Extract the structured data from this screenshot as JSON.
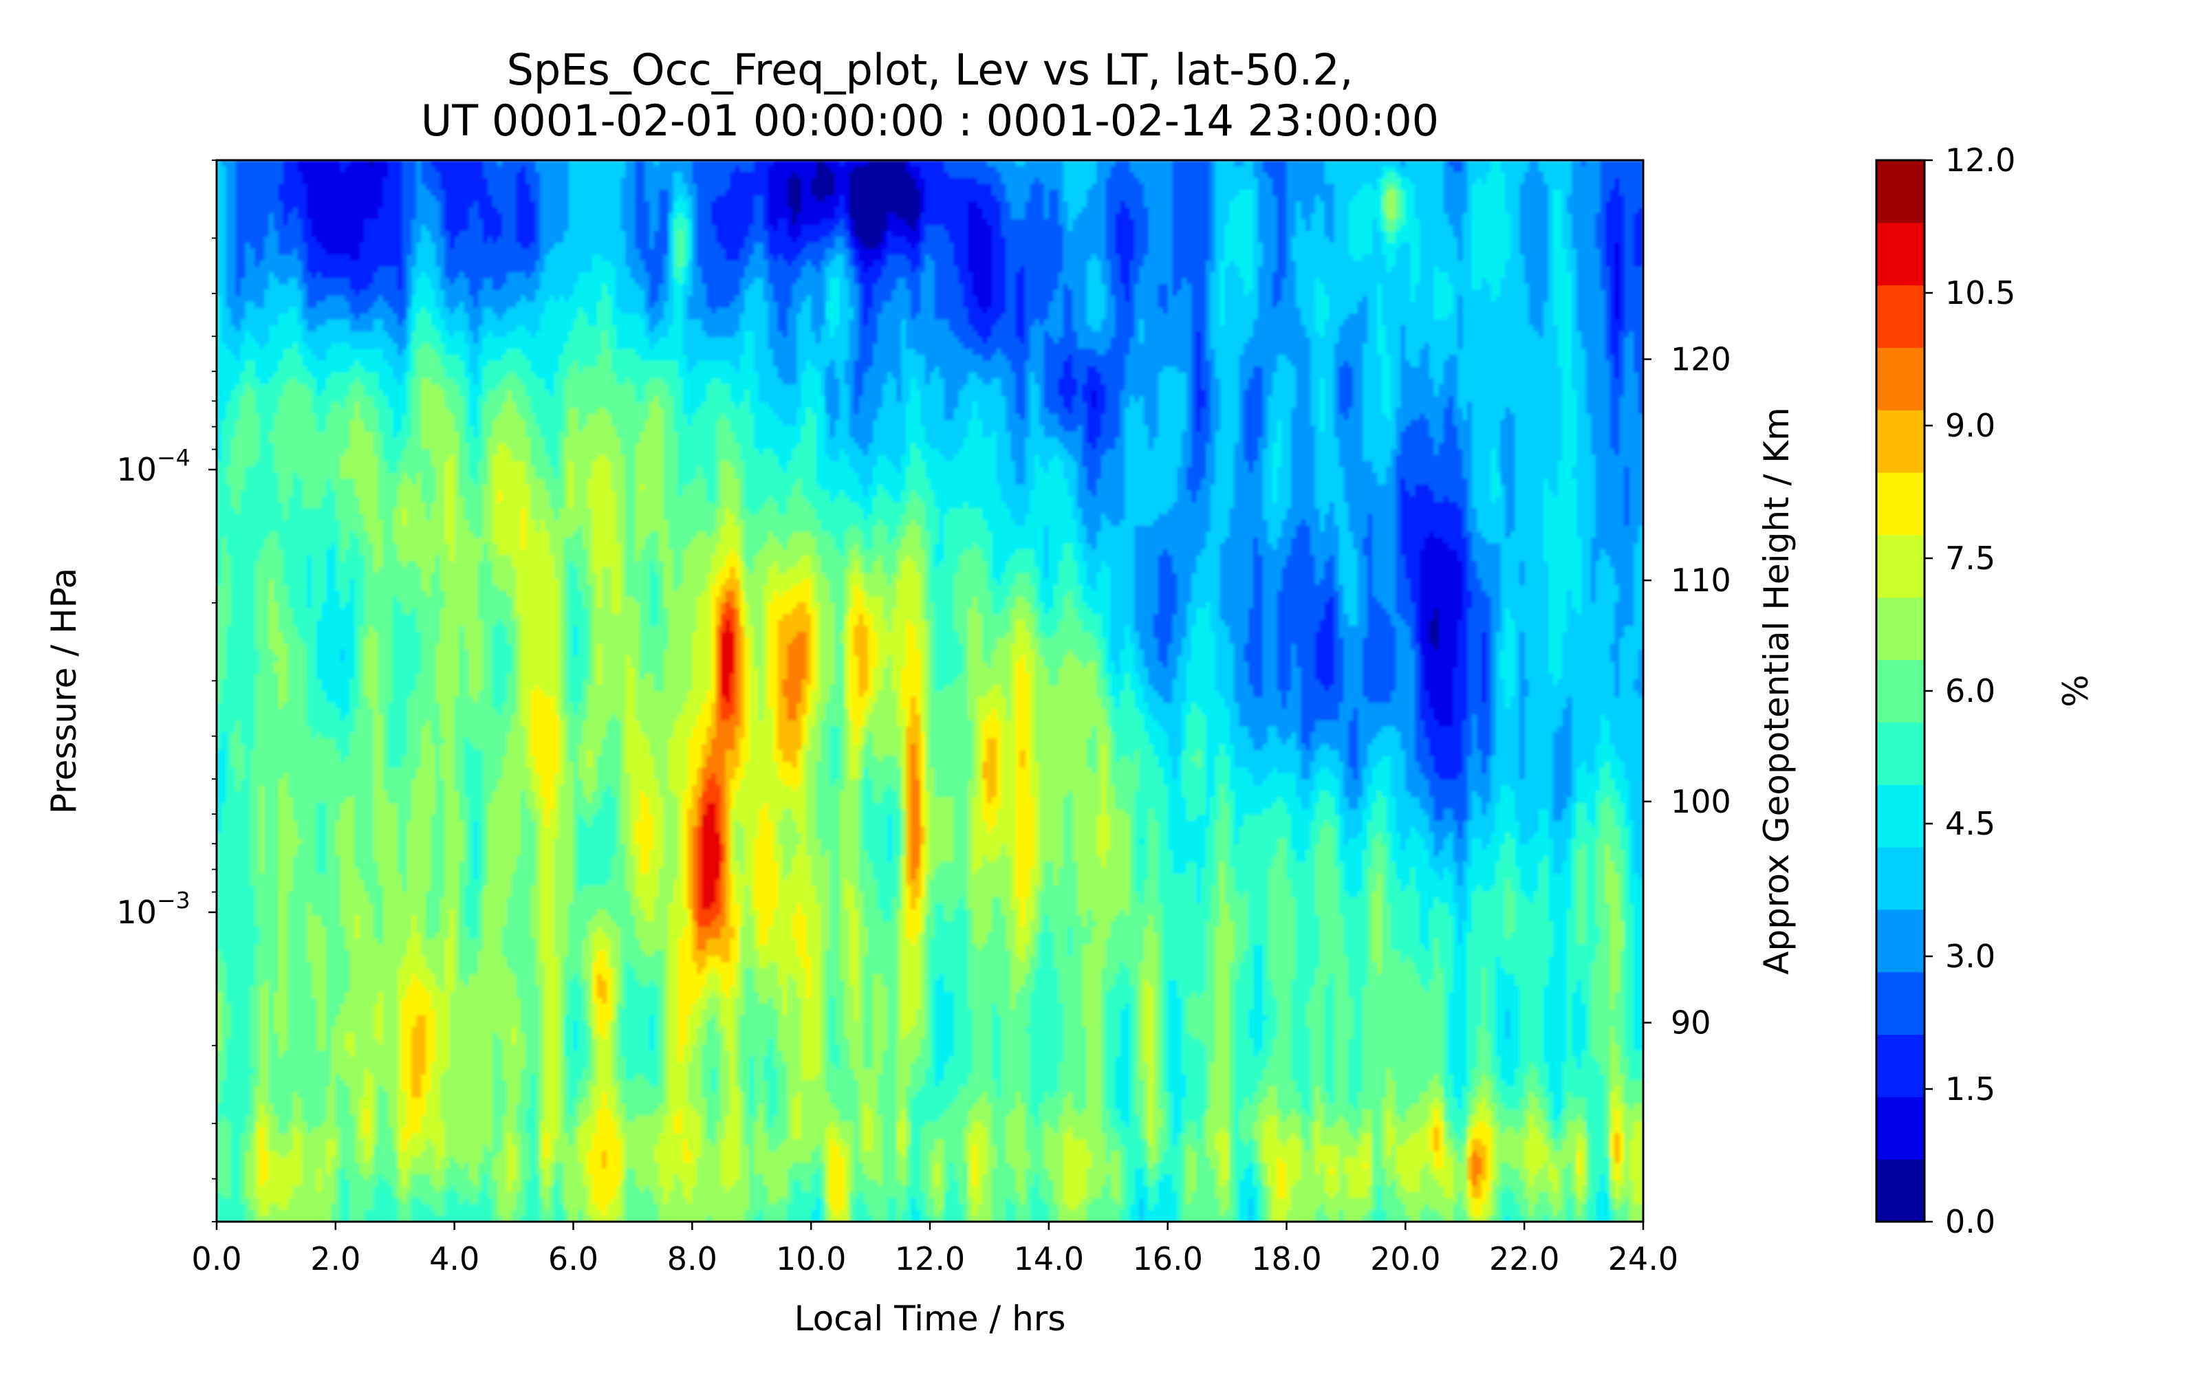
{
  "chart_data": {
    "type": "heatmap",
    "title_line1": "SpEs_Occ_Freq_plot, Lev vs LT, lat-50.2,",
    "title_line2": "UT 0001-02-01 00:00:00 : 0001-02-14 23:00:00",
    "xlabel": "Local Time / hrs",
    "ylabel": "Pressure / HPa",
    "y2label": "Approx Geopotential Height / Km",
    "colorbar_label": "%",
    "xlim": [
      0,
      24
    ],
    "ylim": [
      0.005,
      2e-05
    ],
    "yscale": "log",
    "y2lim": [
      81,
      129
    ],
    "x_ticks": [
      "0.0",
      "2.0",
      "4.0",
      "6.0",
      "8.0",
      "10.0",
      "12.0",
      "14.0",
      "16.0",
      "18.0",
      "20.0",
      "22.0",
      "24.0"
    ],
    "x_tick_values": [
      0,
      2,
      4,
      6,
      8,
      10,
      12,
      14,
      16,
      18,
      20,
      22,
      24
    ],
    "y_ticks": [
      {
        "value": 0.0001,
        "base": "10",
        "exp": "−4"
      },
      {
        "value": 0.001,
        "base": "10",
        "exp": "−3"
      }
    ],
    "y2_ticks": [
      "90",
      "100",
      "110",
      "120"
    ],
    "y2_tick_values": [
      90,
      100,
      110,
      120
    ],
    "colorbar_ticks": [
      "0.0",
      "1.5",
      "3.0",
      "4.5",
      "6.0",
      "7.5",
      "9.0",
      "10.5",
      "12.0"
    ],
    "colorbar_tick_values": [
      0,
      1.5,
      3,
      4.5,
      6,
      7.5,
      9,
      10.5,
      12
    ],
    "levels": [
      0,
      0.75,
      1.5,
      2.25,
      3,
      3.75,
      4.5,
      5.25,
      6,
      6.75,
      7.5,
      8.25,
      9,
      9.75,
      10.5,
      11.25,
      12
    ],
    "level_colors": [
      "#00009f",
      "#0000ea",
      "#0022ff",
      "#005aff",
      "#0097ff",
      "#00cfff",
      "#00f0f4",
      "#2fffc6",
      "#5fff96",
      "#99ff5e",
      "#cbff2b",
      "#fff300",
      "#ffbb00",
      "#ff7d00",
      "#ff4200",
      "#e80000",
      "#9f0000"
    ],
    "grid": false,
    "description_of_field": "Occurrence frequency (%) of sporadic E vs local time (x) and pressure level (y). Background ~5-7%; blue low-frequency region (1-4%) at high altitude (upper part) that descends from ~10 LT toward ~21 LT; yellow/orange/red vertical streaks (8-11%) between ~6 and ~17 LT in mid-levels; orange band near the bottom."
  }
}
